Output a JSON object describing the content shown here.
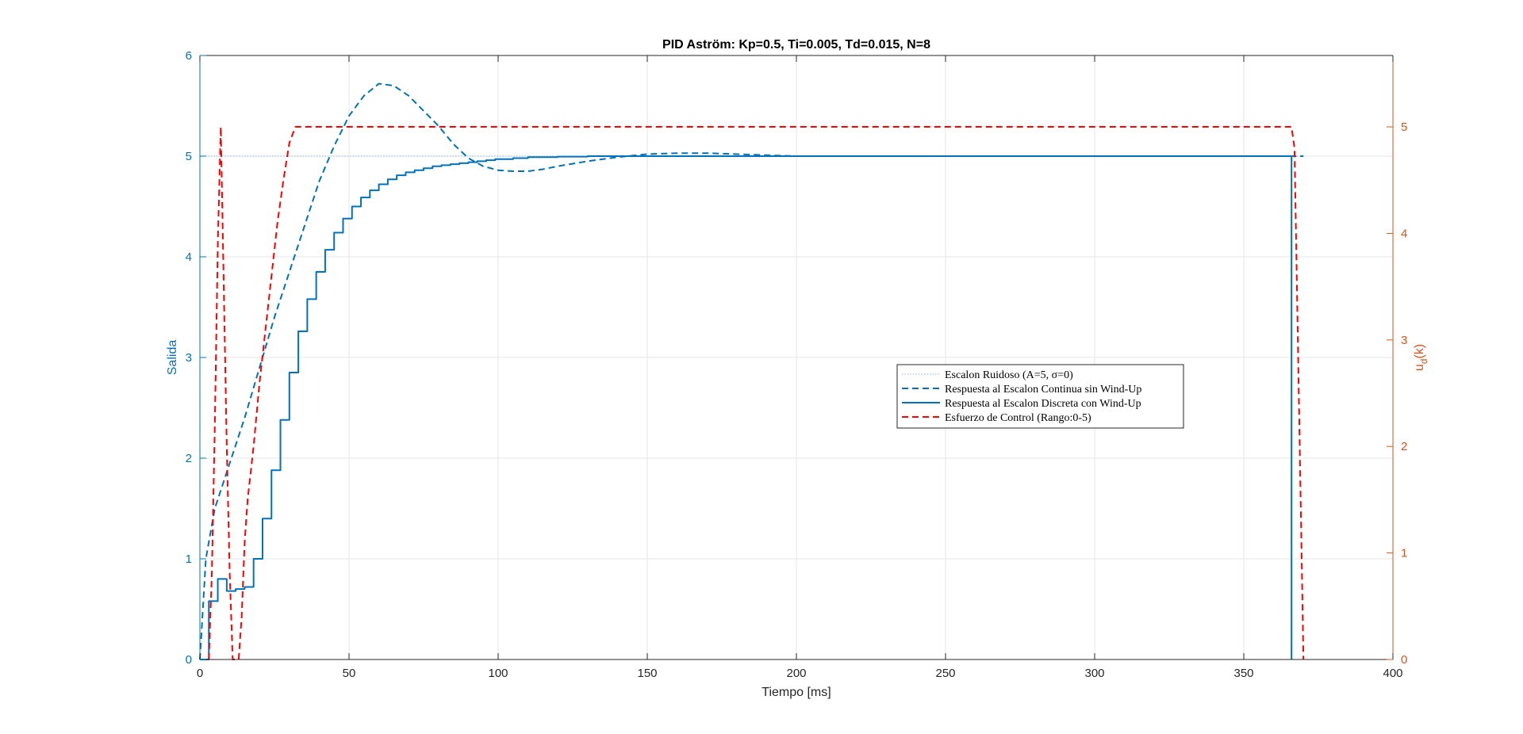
{
  "chart_data": {
    "type": "line",
    "title": "PID Aström: Kp=0.5, Ti=0.005, Td=0.015, N=8",
    "xlabel": "Tiempo [ms]",
    "ylabel_left": "Salida",
    "ylabel_right_base": "u",
    "ylabel_right_sub": "d",
    "ylabel_right_tail": "(k)",
    "xlim": [
      0,
      400
    ],
    "ylim_left": [
      0,
      6
    ],
    "ylim_right": [
      0,
      5.67
    ],
    "xticks": [
      "0",
      "50",
      "100",
      "150",
      "200",
      "250",
      "300",
      "350",
      "400"
    ],
    "xtick_values": [
      0,
      50,
      100,
      150,
      200,
      250,
      300,
      350,
      400
    ],
    "yticks_left": [
      "0",
      "1",
      "2",
      "3",
      "4",
      "5",
      "6"
    ],
    "ytick_values_left": [
      0,
      1,
      2,
      3,
      4,
      5,
      6
    ],
    "yticks_right": [
      "0",
      "1",
      "2",
      "3",
      "4",
      "5"
    ],
    "ytick_values_right": [
      0,
      1,
      2,
      3,
      4,
      5
    ],
    "grid": true,
    "legend_position": "center-right",
    "colors": {
      "left_axis": "#0072BD",
      "right_axis": "#D95319",
      "series_blue": "#0072BD",
      "series_light_blue": "#9FC5E8",
      "series_red": "#FF0000",
      "grid": "#E6E6E6"
    },
    "series": [
      {
        "name": "Escalon Ruidoso (A=5, σ=0)",
        "axis": "left",
        "style": "dotted",
        "color": "#9FC5E8",
        "x": [
          0,
          370
        ],
        "y": [
          5,
          5
        ]
      },
      {
        "name": "Respuesta al Escalon Continua sin Wind-Up",
        "axis": "left",
        "style": "dashed",
        "color": "#0072BD",
        "x": [
          0,
          2,
          5,
          10,
          15,
          20,
          25,
          30,
          35,
          40,
          45,
          50,
          55,
          60,
          65,
          70,
          75,
          80,
          85,
          90,
          95,
          100,
          105,
          110,
          115,
          120,
          130,
          140,
          150,
          160,
          170,
          180,
          200,
          220,
          250,
          300,
          350,
          370
        ],
        "y": [
          0,
          1.0,
          1.5,
          1.95,
          2.4,
          2.9,
          3.4,
          3.85,
          4.3,
          4.75,
          5.1,
          5.4,
          5.6,
          5.72,
          5.7,
          5.6,
          5.45,
          5.3,
          5.12,
          4.98,
          4.9,
          4.86,
          4.85,
          4.85,
          4.87,
          4.9,
          4.95,
          4.99,
          5.02,
          5.03,
          5.03,
          5.02,
          5.0,
          5.0,
          5.0,
          5.0,
          5.0,
          5.0
        ]
      },
      {
        "name": "Respuesta al Escalon Discreta con Wind-Up",
        "axis": "left",
        "style": "step",
        "color": "#0072BD",
        "x": [
          0,
          3,
          6,
          9,
          12,
          15,
          18,
          21,
          24,
          27,
          30,
          33,
          36,
          39,
          42,
          45,
          48,
          51,
          54,
          57,
          60,
          63,
          66,
          69,
          72,
          75,
          78,
          81,
          84,
          87,
          90,
          93,
          96,
          99,
          105,
          110,
          120,
          130,
          150,
          200,
          250,
          300,
          366,
          366
        ],
        "y": [
          0,
          0.58,
          0.8,
          0.68,
          0.7,
          0.72,
          1.0,
          1.4,
          1.88,
          2.38,
          2.85,
          3.26,
          3.58,
          3.85,
          4.07,
          4.24,
          4.38,
          4.5,
          4.59,
          4.66,
          4.72,
          4.77,
          4.81,
          4.84,
          4.86,
          4.88,
          4.9,
          4.91,
          4.92,
          4.93,
          4.94,
          4.95,
          4.96,
          4.97,
          4.98,
          4.99,
          4.995,
          5.0,
          5.0,
          5.0,
          5.0,
          5.0,
          5.0,
          0
        ]
      },
      {
        "name": "Esfuerzo de Control (Rango:0-5)",
        "axis": "right",
        "style": "dashed",
        "color": "#FF0000",
        "x": [
          3,
          4,
          5,
          6,
          7,
          8,
          9,
          10,
          11,
          12,
          13,
          14,
          15,
          16,
          18,
          20,
          22,
          24,
          26,
          28,
          30,
          32,
          34,
          366,
          367,
          370
        ],
        "y": [
          0,
          0.8,
          2.2,
          3.9,
          5.0,
          3.5,
          2.0,
          0.8,
          0,
          0,
          0,
          0.4,
          1.1,
          1.5,
          2.0,
          2.6,
          3.1,
          3.6,
          4.1,
          4.5,
          4.85,
          5.0,
          5.0,
          5.0,
          4.8,
          0
        ]
      }
    ]
  }
}
